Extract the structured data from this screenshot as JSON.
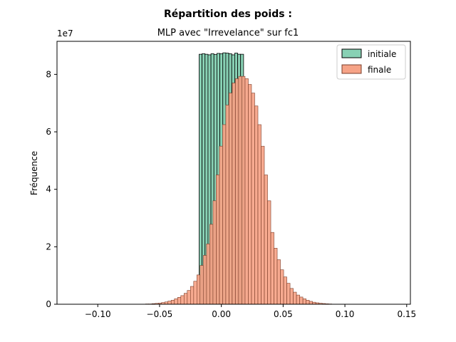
{
  "chart_data": {
    "type": "bar",
    "suptitle": "Répartition des poids :",
    "title": "MLP avec \"Irrevelance\" sur fc1",
    "xlabel": "",
    "ylabel": "Fréquence",
    "y_offset_label": "1e7",
    "xlim": [
      -0.133,
      0.153
    ],
    "ylim": [
      0,
      9.15
    ],
    "x_ticks": [
      -0.1,
      -0.05,
      0.0,
      0.05,
      0.1,
      0.15
    ],
    "x_tick_labels": [
      "−0.10",
      "−0.05",
      "0.00",
      "0.05",
      "0.10",
      "0.15"
    ],
    "y_ticks": [
      0,
      2,
      4,
      6,
      8
    ],
    "y_tick_labels": [
      "0",
      "2",
      "4",
      "6",
      "8"
    ],
    "grid": false,
    "legend_position": "top-right",
    "series": [
      {
        "name": "initiale",
        "color": "#88d1b4",
        "edge_color": "#000000",
        "bin_width": 0.0024,
        "x": [
          -0.018,
          -0.0156,
          -0.0132,
          -0.0108,
          -0.0084,
          -0.006,
          -0.0036,
          -0.0012,
          0.0012,
          0.0036,
          0.006,
          0.0084,
          0.0108,
          0.0132,
          0.0156
        ],
        "values": [
          8.7,
          8.72,
          8.7,
          8.68,
          8.72,
          8.69,
          8.73,
          8.72,
          8.75,
          8.74,
          8.72,
          8.68,
          8.74,
          8.7,
          8.7
        ]
      },
      {
        "name": "finale",
        "color": "#f6a387",
        "edge_color": "#7a3d28",
        "bin_width": 0.0026,
        "x_range": [
          -0.1186,
          0.1414
        ],
        "values": [
          0.003,
          0.003,
          0.003,
          0.003,
          0.003,
          0.003,
          0.003,
          0.003,
          0.003,
          0.003,
          0.003,
          0.003,
          0.003,
          0.003,
          0.003,
          0.003,
          0.003,
          0.003,
          0.003,
          0.003,
          0.003,
          0.003,
          0.01,
          0.01,
          0.02,
          0.03,
          0.04,
          0.06,
          0.08,
          0.11,
          0.14,
          0.19,
          0.24,
          0.3,
          0.38,
          0.48,
          0.62,
          0.8,
          1.02,
          1.35,
          1.7,
          2.1,
          2.78,
          3.6,
          4.5,
          5.5,
          6.25,
          6.93,
          7.35,
          7.7,
          7.85,
          7.93,
          7.93,
          7.85,
          7.65,
          7.35,
          6.9,
          6.25,
          5.5,
          4.5,
          3.6,
          2.5,
          1.95,
          1.55,
          1.2,
          0.95,
          0.73,
          0.55,
          0.42,
          0.32,
          0.25,
          0.19,
          0.14,
          0.1,
          0.07,
          0.05,
          0.035,
          0.025,
          0.015,
          0.01,
          0.005,
          0.003,
          0.003,
          0.003,
          0.003,
          0.003,
          0.003,
          0.003,
          0.003,
          0.003,
          0.003,
          0.003,
          0.003,
          0.003,
          0.003,
          0.003,
          0.003,
          0.003,
          0.003,
          0.003
        ]
      }
    ]
  }
}
